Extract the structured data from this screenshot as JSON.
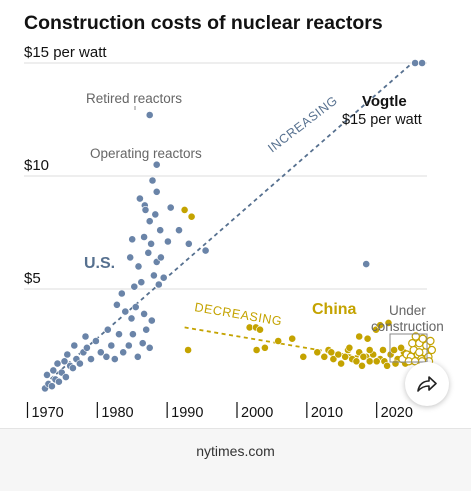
{
  "chart_data": {
    "type": "scatter",
    "title": "Construction costs of nuclear reactors",
    "xlabel": "",
    "ylabel": "",
    "xlim": [
      1967,
      2028
    ],
    "ylim": [
      0,
      15
    ],
    "grid": true,
    "y_tick_labels": [
      {
        "value": 5,
        "label": "$5"
      },
      {
        "value": 10,
        "label": "$10"
      },
      {
        "value": 15,
        "label": "$15 per watt"
      }
    ],
    "x_tick_labels": [
      {
        "value": 1970,
        "label": "1970"
      },
      {
        "value": 1980,
        "label": "1980"
      },
      {
        "value": 1990,
        "label": "1990"
      },
      {
        "value": 2000,
        "label": "2000"
      },
      {
        "value": 2010,
        "label": "2010"
      },
      {
        "value": 2020,
        "label": "2020"
      }
    ],
    "series": [
      {
        "name": "U.S.",
        "color": "#6a84a8",
        "points": [
          [
            1970.0,
            0.6
          ],
          [
            1970.5,
            0.8
          ],
          [
            1971.0,
            0.7
          ],
          [
            1971.5,
            1.0
          ],
          [
            1972.0,
            0.9
          ],
          [
            1970.3,
            1.2
          ],
          [
            1971.2,
            1.4
          ],
          [
            1972.4,
            1.3
          ],
          [
            1973.0,
            1.1
          ],
          [
            1973.6,
            1.6
          ],
          [
            1971.8,
            1.7
          ],
          [
            1972.8,
            1.8
          ],
          [
            1974.0,
            1.5
          ],
          [
            1974.5,
            1.9
          ],
          [
            1973.2,
            2.1
          ],
          [
            1975.0,
            1.7
          ],
          [
            1975.5,
            2.2
          ],
          [
            1974.2,
            2.5
          ],
          [
            1976.0,
            2.4
          ],
          [
            1976.6,
            1.9
          ],
          [
            1977.3,
            2.7
          ],
          [
            1975.8,
            2.9
          ],
          [
            1978.0,
            2.2
          ],
          [
            1978.8,
            2.0
          ],
          [
            1979.5,
            2.5
          ],
          [
            1980.0,
            1.9
          ],
          [
            1980.6,
            3.0
          ],
          [
            1981.2,
            2.2
          ],
          [
            1979.0,
            3.2
          ],
          [
            1982.0,
            2.5
          ],
          [
            1982.6,
            3.0
          ],
          [
            1983.3,
            2.0
          ],
          [
            1984.0,
            2.6
          ],
          [
            1984.5,
            3.2
          ],
          [
            1985.0,
            2.4
          ],
          [
            1981.5,
            4.0
          ],
          [
            1980.3,
            4.3
          ],
          [
            1982.4,
            3.7
          ],
          [
            1983.0,
            4.2
          ],
          [
            1984.2,
            3.9
          ],
          [
            1985.3,
            3.6
          ],
          [
            1981.0,
            4.8
          ],
          [
            1982.8,
            5.1
          ],
          [
            1983.8,
            5.3
          ],
          [
            1985.6,
            5.6
          ],
          [
            1986.3,
            5.2
          ],
          [
            1983.4,
            6.0
          ],
          [
            1984.8,
            6.6
          ],
          [
            1986.0,
            6.2
          ],
          [
            1982.2,
            6.4
          ],
          [
            1987.0,
            5.5
          ],
          [
            1984.2,
            7.3
          ],
          [
            1986.6,
            6.4
          ],
          [
            1985.2,
            7.0
          ],
          [
            1982.5,
            7.2
          ],
          [
            1985.0,
            8.0
          ],
          [
            1985.8,
            8.3
          ],
          [
            1986.5,
            7.6
          ],
          [
            1984.3,
            8.7
          ],
          [
            1983.6,
            9.0
          ],
          [
            1986.0,
            9.3
          ],
          [
            1985.4,
            9.8
          ],
          [
            1988.0,
            8.6
          ],
          [
            1989.2,
            7.6
          ],
          [
            1990.6,
            7.0
          ],
          [
            1987.6,
            7.1
          ],
          [
            1984.4,
            8.5
          ],
          [
            1986.0,
            10.5
          ],
          [
            1993.0,
            6.7
          ],
          [
            2016.0,
            6.1
          ],
          [
            1985.0,
            12.7
          ],
          [
            2023.0,
            15.0
          ],
          [
            2024.0,
            15.0
          ]
        ]
      },
      {
        "name": "China",
        "color": "#c4a300",
        "points": [
          [
            1990.0,
            8.5
          ],
          [
            1991.0,
            8.2
          ],
          [
            1990.5,
            2.3
          ],
          [
            1999.3,
            3.3
          ],
          [
            2000.2,
            3.3
          ],
          [
            2000.8,
            3.2
          ],
          [
            2001.5,
            2.4
          ],
          [
            2003.4,
            2.7
          ],
          [
            2005.4,
            2.8
          ],
          [
            2000.3,
            2.3
          ],
          [
            2007.0,
            2.0
          ],
          [
            2009.0,
            2.2
          ],
          [
            2010.6,
            2.3
          ],
          [
            2011.3,
            1.9
          ],
          [
            2012.0,
            2.1
          ],
          [
            2013.0,
            2.0
          ],
          [
            2014.0,
            1.9
          ],
          [
            2015.0,
            2.2
          ],
          [
            2016.0,
            2.0
          ],
          [
            2017.0,
            2.1
          ],
          [
            2018.0,
            1.9
          ],
          [
            2010.0,
            2.0
          ],
          [
            2011.0,
            2.2
          ],
          [
            2013.4,
            2.3
          ],
          [
            2014.6,
            1.8
          ],
          [
            2016.5,
            1.8
          ],
          [
            2017.5,
            1.8
          ],
          [
            2018.6,
            1.8
          ],
          [
            2019.5,
            2.1
          ],
          [
            2020.5,
            1.9
          ],
          [
            2021.4,
            2.2
          ],
          [
            2022.2,
            2.1
          ],
          [
            2023.0,
            1.8
          ],
          [
            2012.4,
            1.7
          ],
          [
            2015.4,
            1.6
          ],
          [
            2019.0,
            1.6
          ],
          [
            2016.2,
            2.8
          ],
          [
            2015.0,
            2.9
          ],
          [
            2017.4,
            3.2
          ],
          [
            2018.0,
            3.4
          ],
          [
            2019.2,
            3.5
          ],
          [
            2020.0,
            2.3
          ],
          [
            2021.0,
            2.4
          ],
          [
            2018.4,
            2.3
          ],
          [
            2022.4,
            1.8
          ],
          [
            2020.2,
            1.7
          ],
          [
            2021.6,
            1.7
          ],
          [
            2016.5,
            2.3
          ],
          [
            2013.6,
            2.4
          ],
          [
            2015.6,
            2.0
          ]
        ]
      },
      {
        "name": "Under construction",
        "color": "#c4a300",
        "hollow": true,
        "points": [
          [
            2021.2,
            1.9
          ],
          [
            2021.8,
            2.1
          ],
          [
            2022.4,
            2.0
          ],
          [
            2022.8,
            2.3
          ],
          [
            2023.4,
            2.1
          ],
          [
            2023.9,
            1.9
          ],
          [
            2024.4,
            2.2
          ],
          [
            2024.9,
            2.0
          ],
          [
            2025.4,
            2.3
          ],
          [
            2022.1,
            1.8
          ],
          [
            2023.0,
            1.8
          ],
          [
            2024.0,
            1.8
          ],
          [
            2025.0,
            1.8
          ],
          [
            2022.6,
            2.6
          ],
          [
            2023.6,
            2.6
          ],
          [
            2024.6,
            2.5
          ],
          [
            2023.1,
            2.9
          ],
          [
            2024.1,
            2.8
          ],
          [
            2025.2,
            2.7
          ],
          [
            2023.6,
            2.2
          ]
        ]
      }
    ],
    "trendlines": [
      {
        "name": "INCREASING",
        "from": [
          1970,
          0.8
        ],
        "to": [
          2022.6,
          15.0
        ],
        "color": "#56708f"
      },
      {
        "name": "DECREASING",
        "from": [
          1990,
          3.3
        ],
        "to": [
          2015,
          2.0
        ],
        "color": "#c4a300"
      }
    ],
    "annotations": {
      "retired": "Retired reactors",
      "operating": "Operating reactors",
      "us_label": "U.S.",
      "china_label": "China",
      "increasing": "INCREASING",
      "decreasing": "DECREASING",
      "under_line1": "Under",
      "under_line2": "construction",
      "vogtle_name": "Vogtle",
      "vogtle_cost": "$15 per watt"
    }
  },
  "footer": {
    "source": "nytimes.com"
  },
  "share": {
    "icon": "share-arrow-icon"
  }
}
